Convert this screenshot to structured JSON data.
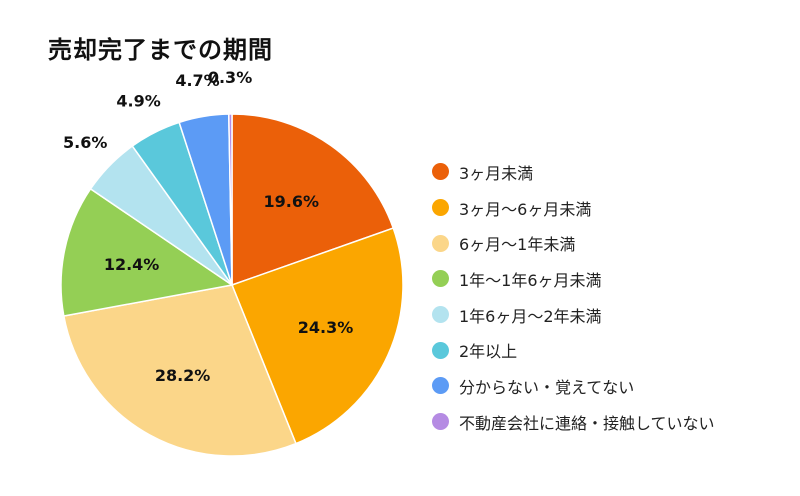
{
  "chart_data": {
    "type": "pie",
    "title": "売却完了までの期間",
    "categories": [
      "3ヶ月未満",
      "3ヶ月〜6ヶ月未満",
      "6ヶ月〜1年未満",
      "1年〜1年6ヶ月未満",
      "1年6ヶ月〜2年未満",
      "2年以上",
      "分からない・覚えてない",
      "不動産会社に連絡・接触していない"
    ],
    "values": [
      19.6,
      24.3,
      28.2,
      12.4,
      5.6,
      4.9,
      4.7,
      0.3
    ],
    "labels": [
      "19.6%",
      "24.3%",
      "28.2%",
      "12.4%",
      "5.6%",
      "4.9%",
      "4.7%",
      "0.3%"
    ],
    "colors": [
      "#EB6009",
      "#FBA600",
      "#FBD689",
      "#94CF55",
      "#B3E3EF",
      "#5AC8DB",
      "#5C9BF5",
      "#B58BE3"
    ],
    "legend_position": "right"
  }
}
